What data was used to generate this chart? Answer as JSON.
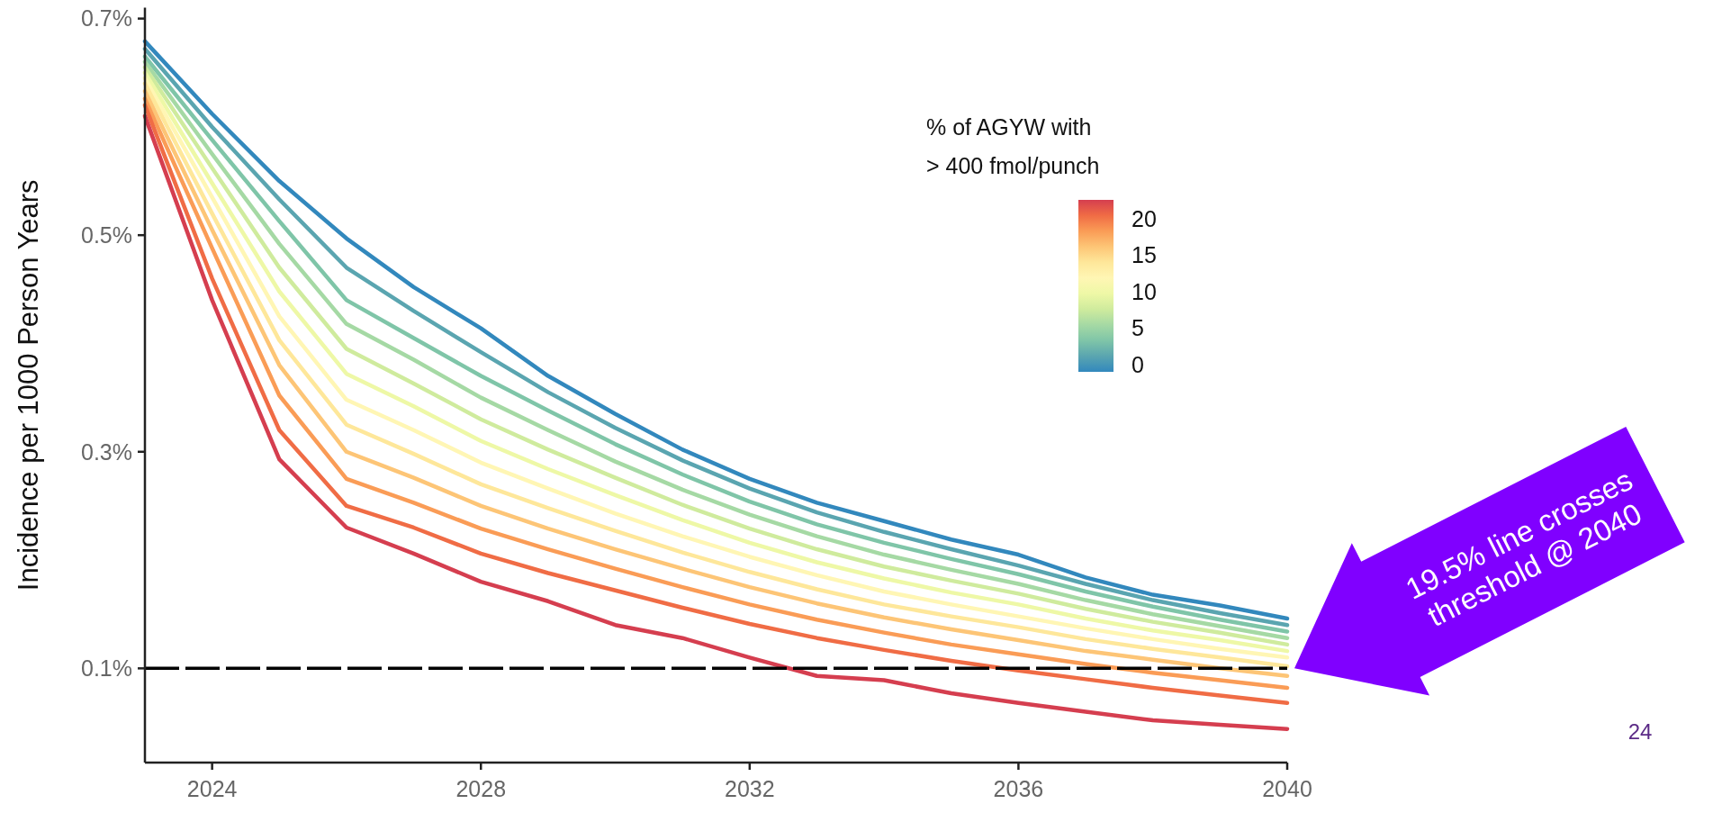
{
  "chart_data": {
    "type": "line",
    "ylabel": "Incidence per 1000 Person Years",
    "legend_title": "% of AGYW with\n> 400 fmol/punch",
    "x": [
      2023,
      2024,
      2025,
      2026,
      2027,
      2028,
      2029,
      2030,
      2031,
      2032,
      2033,
      2034,
      2035,
      2036,
      2037,
      2038,
      2039,
      2040
    ],
    "xlim": [
      2023,
      2040
    ],
    "xticks": [
      2024,
      2028,
      2032,
      2036,
      2040
    ],
    "ylim": [
      0.013,
      0.71
    ],
    "yticks": [
      {
        "value": 0.1,
        "label": "0.1%"
      },
      {
        "value": 0.3,
        "label": "0.3%"
      },
      {
        "value": 0.5,
        "label": "0.5%"
      },
      {
        "value": 0.7,
        "label": "0.7%"
      }
    ],
    "grid": false,
    "line_style": "solid",
    "series": [
      {
        "color": "#3288bd",
        "values": [
          0.679,
          0.612,
          0.55,
          0.497,
          0.452,
          0.414,
          0.37,
          0.335,
          0.302,
          0.275,
          0.253,
          0.236,
          0.219,
          0.205,
          0.184,
          0.168,
          0.158,
          0.146
        ]
      },
      {
        "color": "#5aa5b0",
        "values": [
          0.672,
          0.6,
          0.533,
          0.47,
          0.43,
          0.392,
          0.355,
          0.322,
          0.292,
          0.266,
          0.244,
          0.226,
          0.21,
          0.195,
          0.178,
          0.163,
          0.151,
          0.14
        ]
      },
      {
        "color": "#7fc5a8",
        "values": [
          0.665,
          0.588,
          0.513,
          0.44,
          0.405,
          0.37,
          0.338,
          0.307,
          0.279,
          0.254,
          0.233,
          0.216,
          0.201,
          0.187,
          0.171,
          0.157,
          0.145,
          0.134
        ]
      },
      {
        "color": "#a5d9a4",
        "values": [
          0.66,
          0.575,
          0.492,
          0.418,
          0.385,
          0.35,
          0.32,
          0.291,
          0.265,
          0.242,
          0.222,
          0.205,
          0.191,
          0.178,
          0.163,
          0.15,
          0.139,
          0.128
        ]
      },
      {
        "color": "#cfeb9d",
        "values": [
          0.655,
          0.562,
          0.47,
          0.395,
          0.363,
          0.33,
          0.302,
          0.276,
          0.251,
          0.229,
          0.21,
          0.194,
          0.181,
          0.169,
          0.155,
          0.143,
          0.133,
          0.122
        ]
      },
      {
        "color": "#eef8a6",
        "values": [
          0.65,
          0.548,
          0.448,
          0.372,
          0.342,
          0.31,
          0.284,
          0.26,
          0.237,
          0.216,
          0.198,
          0.183,
          0.17,
          0.159,
          0.146,
          0.135,
          0.126,
          0.116
        ]
      },
      {
        "color": "#fff6b4",
        "values": [
          0.645,
          0.535,
          0.425,
          0.348,
          0.32,
          0.29,
          0.266,
          0.243,
          0.222,
          0.203,
          0.186,
          0.171,
          0.159,
          0.148,
          0.137,
          0.127,
          0.118,
          0.11
        ]
      },
      {
        "color": "#fee79a",
        "values": [
          0.64,
          0.52,
          0.403,
          0.325,
          0.298,
          0.27,
          0.248,
          0.227,
          0.207,
          0.189,
          0.173,
          0.159,
          0.148,
          0.138,
          0.127,
          0.118,
          0.11,
          0.102
        ]
      },
      {
        "color": "#fdc576",
        "values": [
          0.633,
          0.505,
          0.38,
          0.3,
          0.276,
          0.25,
          0.229,
          0.21,
          0.192,
          0.175,
          0.16,
          0.147,
          0.136,
          0.126,
          0.116,
          0.108,
          0.1,
          0.093
        ]
      },
      {
        "color": "#fa9c56",
        "values": [
          0.626,
          0.488,
          0.352,
          0.275,
          0.253,
          0.229,
          0.21,
          0.192,
          0.175,
          0.159,
          0.145,
          0.133,
          0.122,
          0.113,
          0.104,
          0.096,
          0.089,
          0.082
        ]
      },
      {
        "color": "#f06c45",
        "values": [
          0.62,
          0.46,
          0.32,
          0.25,
          0.23,
          0.206,
          0.188,
          0.172,
          0.156,
          0.141,
          0.128,
          0.117,
          0.107,
          0.098,
          0.09,
          0.082,
          0.075,
          0.068
        ]
      },
      {
        "color": "#d53e4f",
        "values": [
          0.61,
          0.44,
          0.293,
          0.23,
          0.206,
          0.18,
          0.162,
          0.14,
          0.128,
          0.11,
          0.093,
          0.089,
          0.077,
          0.068,
          0.06,
          0.052,
          0.048,
          0.044
        ]
      }
    ],
    "ref_lines": [
      {
        "axis": "y",
        "value": 0.1,
        "color": "#000000",
        "line_style": "dashed"
      }
    ],
    "annotations": [
      "19.5% line crosses threshold @ 2040",
      "24",
      "0",
      "5",
      "10",
      "15",
      "20"
    ]
  }
}
